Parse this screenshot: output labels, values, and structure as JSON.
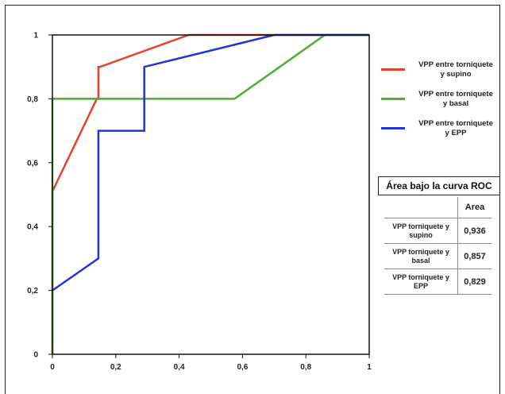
{
  "chart_data": {
    "type": "line",
    "xlim": [
      0,
      1
    ],
    "ylim": [
      0,
      1
    ],
    "x_ticks": [
      "0",
      "0,2",
      "0,4",
      "0,6",
      "0,8",
      "1"
    ],
    "y_ticks": [
      "0",
      "0,2",
      "0,4",
      "0,6",
      "0,8",
      "1"
    ],
    "grid": false,
    "legend_position": "right",
    "series": [
      {
        "name": "VPP entre torniquete\ny supino",
        "color": "#e8402a",
        "points": [
          [
            0,
            0
          ],
          [
            0,
            0.51
          ],
          [
            0.14,
            0.8
          ],
          [
            0.145,
            0.8
          ],
          [
            0.145,
            0.9
          ],
          [
            0.15,
            0.9
          ],
          [
            0.43,
            1.0
          ],
          [
            1,
            1
          ]
        ]
      },
      {
        "name": "VPP entre torniquete\ny basal",
        "color": "#4caf2f",
        "points": [
          [
            0,
            0
          ],
          [
            0,
            0.8
          ],
          [
            0.575,
            0.8
          ],
          [
            0.86,
            1.0
          ],
          [
            1,
            1
          ]
        ]
      },
      {
        "name": "VPP entre torniquete\ny EPP",
        "color": "#2233dd",
        "points": [
          [
            0,
            0.2
          ],
          [
            0.145,
            0.3
          ],
          [
            0.145,
            0.7
          ],
          [
            0.29,
            0.7
          ],
          [
            0.29,
            0.9
          ],
          [
            0.7,
            1.0
          ],
          [
            1,
            1
          ]
        ]
      }
    ]
  },
  "auc_table": {
    "title": "Área bajo la curva ROC",
    "header": "Area",
    "rows": [
      {
        "name": "VPP torniquete y\nsupino",
        "value": "0,936"
      },
      {
        "name": "VPP torniquete y\nbasal",
        "value": "0,857"
      },
      {
        "name": "VPP torniquete y\nEPP",
        "value": "0,829"
      }
    ]
  }
}
